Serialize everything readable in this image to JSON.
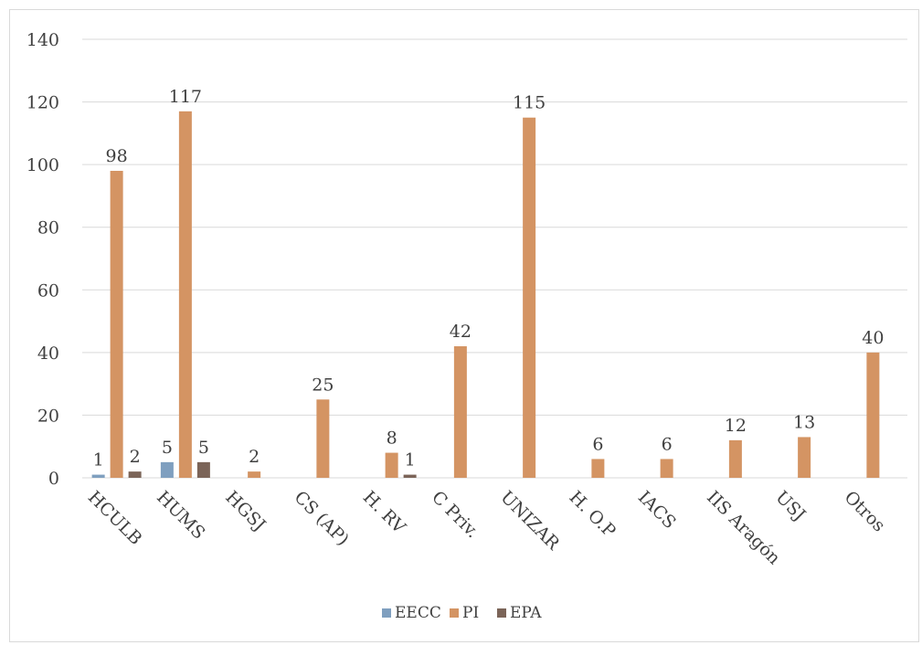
{
  "chart_data": {
    "type": "bar",
    "categories": [
      "HCULB",
      "HUMS",
      "HGSJ",
      "CS (AP)",
      "H. RV",
      "C Priv.",
      "UNIZAR",
      "H. O.P",
      "IACS",
      "IIS Aragón",
      "USJ",
      "Otros"
    ],
    "series": [
      {
        "name": "EECC",
        "color": "#7f9fbf",
        "values": [
          1,
          5,
          0,
          0,
          0,
          0,
          0,
          0,
          0,
          0,
          0,
          0
        ],
        "labels": [
          "1",
          "5",
          "",
          "",
          "",
          "",
          "",
          "",
          "",
          "",
          "",
          ""
        ]
      },
      {
        "name": "PI",
        "color": "#d49463",
        "values": [
          98,
          117,
          2,
          25,
          8,
          42,
          115,
          6,
          6,
          12,
          13,
          40
        ],
        "labels": [
          "98",
          "117",
          "2",
          "25",
          "8",
          "42",
          "115",
          "6",
          "6",
          "12",
          "13",
          "40"
        ]
      },
      {
        "name": "EPA",
        "color": "#7b6458",
        "values": [
          2,
          5,
          0,
          0,
          1,
          0,
          0,
          0,
          0,
          0,
          0,
          0
        ],
        "labels": [
          "2",
          "5",
          "",
          "",
          "1",
          "",
          "",
          "",
          "",
          "",
          "",
          ""
        ]
      }
    ],
    "yticks": [
      "0",
      "20",
      "40",
      "60",
      "80",
      "100",
      "120",
      "140"
    ],
    "ylim": [
      0,
      140
    ],
    "grid": true,
    "legend_position": "bottom"
  }
}
